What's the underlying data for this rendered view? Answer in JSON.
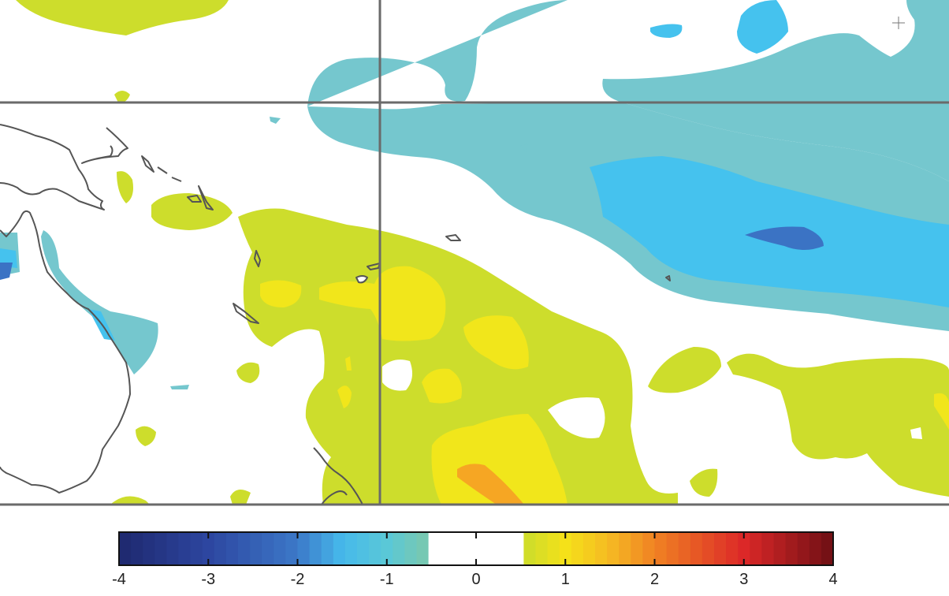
{
  "map": {
    "colors": {
      "neg_strong": "#3b73c4",
      "neg_medium": "#45c2ee",
      "neg_weak": "#75c7ce",
      "pos_weak": "#cddd2c",
      "pos_medium": "#f1e61b",
      "pos_strong": "#f6a623",
      "coastline": "#555555",
      "gridline": "#6a6a6a"
    }
  },
  "colorbar": {
    "min": -4,
    "max": 4,
    "tick_labels": [
      "-4",
      "-3",
      "-2",
      "-1",
      "0",
      "1",
      "2",
      "3",
      "4"
    ],
    "neutral_range": [
      -0.5,
      0.5
    ]
  }
}
